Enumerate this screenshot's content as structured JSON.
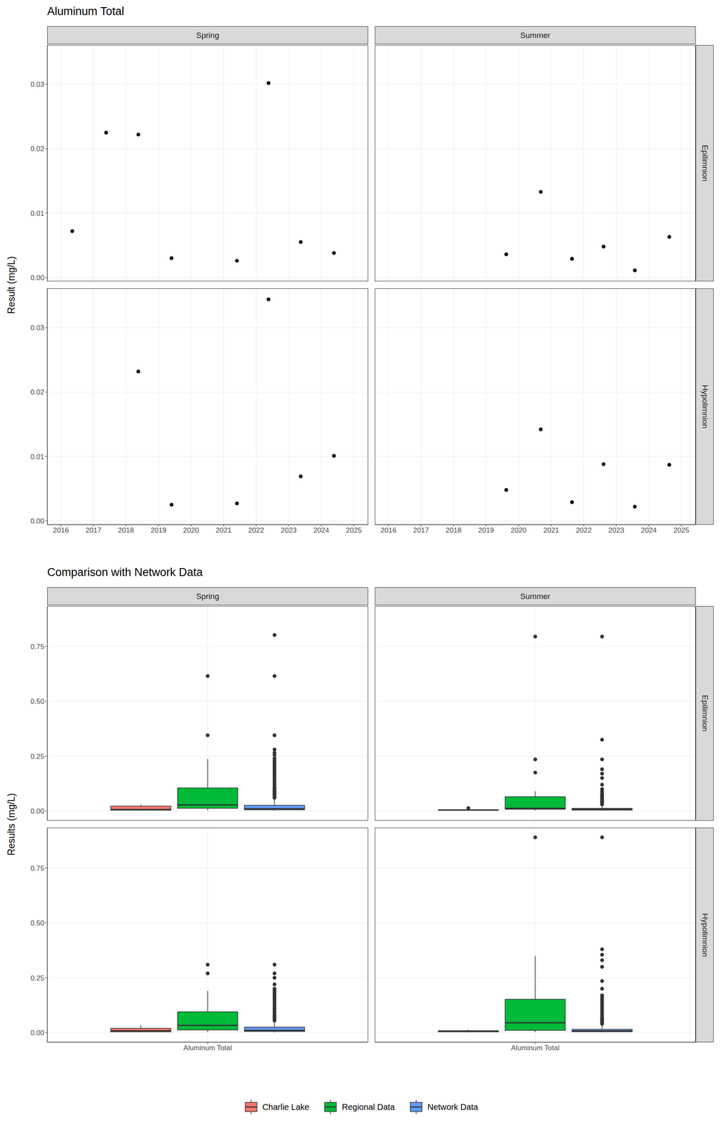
{
  "chart_data": [
    {
      "type": "scatter",
      "title": "Aluminum Total",
      "y_label": "Result (mg/L)",
      "columns": [
        "Spring",
        "Summer"
      ],
      "rows": [
        "Epilimnion",
        "Hypolimnion"
      ],
      "xlim": [
        2015.58,
        2025.44
      ],
      "xticks": [
        2016,
        2017,
        2018,
        2019,
        2020,
        2021,
        2022,
        2023,
        2024,
        2025
      ],
      "ylim": [
        -0.0006,
        0.0361
      ],
      "yticks": [
        {
          "value": 0,
          "label": "0.00"
        },
        {
          "value": 0.01,
          "label": "0.01"
        },
        {
          "value": 0.02,
          "label": "0.02"
        },
        {
          "value": 0.03,
          "label": "0.03"
        }
      ],
      "grid": true,
      "color": "#000000",
      "marker": "circle",
      "panels": [
        {
          "column": "Spring",
          "row": "Epilimnion",
          "x": [
            2016.35,
            2017.39,
            2018.38,
            2019.4,
            2021.41,
            2022.38,
            2023.37,
            2024.39
          ],
          "values": [
            0.0072,
            0.0225,
            0.0222,
            0.003,
            0.0026,
            0.0302,
            0.0055,
            0.0038
          ]
        },
        {
          "column": "Summer",
          "row": "Epilimnion",
          "x": [
            2019.62,
            2020.68,
            2021.64,
            2022.61,
            2023.57,
            2024.63
          ],
          "values": [
            0.0036,
            0.0133,
            0.0029,
            0.0048,
            0.0011,
            0.0063
          ]
        },
        {
          "column": "Spring",
          "row": "Hypolimnion",
          "x": [
            2018.38,
            2019.4,
            2021.41,
            2022.38,
            2023.37,
            2024.39
          ],
          "values": [
            0.0232,
            0.0025,
            0.0027,
            0.0344,
            0.0069,
            0.0101
          ]
        },
        {
          "column": "Summer",
          "row": "Hypolimnion",
          "x": [
            2019.62,
            2020.68,
            2021.64,
            2022.61,
            2023.57,
            2024.63
          ],
          "values": [
            0.0048,
            0.0142,
            0.0029,
            0.0088,
            0.0022,
            0.0087
          ]
        }
      ]
    },
    {
      "type": "boxplot",
      "title": "Comparison with Network Data",
      "y_label": "Results (mg/L)",
      "columns": [
        "Spring",
        "Summer"
      ],
      "rows": [
        "Epilimnion",
        "Hypolimnion"
      ],
      "categories": [
        "Aluminum Total"
      ],
      "ylim": [
        -0.044,
        0.934
      ],
      "yticks": [
        {
          "value": 0,
          "label": "0.00"
        },
        {
          "value": 0.25,
          "label": "0.25"
        },
        {
          "value": 0.5,
          "label": "0.50"
        },
        {
          "value": 0.75,
          "label": "0.75"
        }
      ],
      "grid": true,
      "legend": "bottom",
      "series": [
        {
          "name": "Charlie Lake",
          "color": "#F8766D"
        },
        {
          "name": "Regional Data",
          "color": "#00BA38"
        },
        {
          "name": "Network Data",
          "color": "#619CFF"
        }
      ],
      "panels": [
        {
          "column": "Spring",
          "row": "Epilimnion",
          "boxes": [
            {
              "name": "Charlie Lake",
              "whisker_low": 0.0026,
              "q1": 0.0036,
              "median": 0.0064,
              "q3": 0.0223,
              "whisker_high": 0.0302,
              "outliers": []
            },
            {
              "name": "Regional Data",
              "whisker_low": 0.002,
              "q1": 0.012,
              "median": 0.028,
              "q3": 0.105,
              "whisker_high": 0.237,
              "outliers": [
                0.345,
                0.615
              ]
            },
            {
              "name": "Network Data",
              "whisker_low": 0.001,
              "q1": 0.005,
              "median": 0.01,
              "q3": 0.026,
              "whisker_high": 0.055,
              "outliers": [
                0.06,
                0.065,
                0.07,
                0.075,
                0.08,
                0.085,
                0.09,
                0.095,
                0.1,
                0.105,
                0.11,
                0.12,
                0.13,
                0.14,
                0.15,
                0.16,
                0.17,
                0.18,
                0.19,
                0.2,
                0.21,
                0.22,
                0.23,
                0.24,
                0.255,
                0.265,
                0.28,
                0.345,
                0.615,
                0.802
              ]
            }
          ]
        },
        {
          "column": "Summer",
          "row": "Epilimnion",
          "boxes": [
            {
              "name": "Charlie Lake",
              "whisker_low": 0.0011,
              "q1": 0.0031,
              "median": 0.0042,
              "q3": 0.0059,
              "whisker_high": 0.0063,
              "outliers": [
                0.0133
              ]
            },
            {
              "name": "Regional Data",
              "whisker_low": 0.002,
              "q1": 0.008,
              "median": 0.012,
              "q3": 0.065,
              "whisker_high": 0.09,
              "outliers": [
                0.175,
                0.235,
                0.795
              ]
            },
            {
              "name": "Network Data",
              "whisker_low": 0.001,
              "q1": 0.004,
              "median": 0.008,
              "q3": 0.012,
              "whisker_high": 0.024,
              "outliers": [
                0.03,
                0.035,
                0.04,
                0.045,
                0.05,
                0.055,
                0.06,
                0.065,
                0.07,
                0.075,
                0.08,
                0.09,
                0.1,
                0.12,
                0.15,
                0.17,
                0.19,
                0.235,
                0.325,
                0.795
              ]
            }
          ]
        },
        {
          "column": "Spring",
          "row": "Hypolimnion",
          "boxes": [
            {
              "name": "Charlie Lake",
              "whisker_low": 0.0025,
              "q1": 0.0037,
              "median": 0.0085,
              "q3": 0.0199,
              "whisker_high": 0.0344,
              "outliers": []
            },
            {
              "name": "Regional Data",
              "whisker_low": 0.002,
              "q1": 0.012,
              "median": 0.033,
              "q3": 0.095,
              "whisker_high": 0.19,
              "outliers": [
                0.27,
                0.31
              ]
            },
            {
              "name": "Network Data",
              "whisker_low": 0.001,
              "q1": 0.005,
              "median": 0.01,
              "q3": 0.025,
              "whisker_high": 0.05,
              "outliers": [
                0.055,
                0.06,
                0.065,
                0.07,
                0.075,
                0.08,
                0.09,
                0.1,
                0.11,
                0.12,
                0.13,
                0.14,
                0.15,
                0.16,
                0.17,
                0.18,
                0.19,
                0.2,
                0.22,
                0.25,
                0.27,
                0.31
              ]
            }
          ]
        },
        {
          "column": "Summer",
          "row": "Hypolimnion",
          "boxes": [
            {
              "name": "Charlie Lake",
              "whisker_low": 0.0022,
              "q1": 0.0034,
              "median": 0.00675,
              "q3": 0.00878,
              "whisker_high": 0.0142,
              "outliers": []
            },
            {
              "name": "Regional Data",
              "whisker_low": 0.002,
              "q1": 0.01,
              "median": 0.045,
              "q3": 0.152,
              "whisker_high": 0.35,
              "outliers": [
                0.89
              ]
            },
            {
              "name": "Network Data",
              "whisker_low": 0.001,
              "q1": 0.004,
              "median": 0.008,
              "q3": 0.015,
              "whisker_high": 0.035,
              "outliers": [
                0.04,
                0.045,
                0.05,
                0.055,
                0.06,
                0.065,
                0.07,
                0.08,
                0.09,
                0.1,
                0.11,
                0.12,
                0.13,
                0.14,
                0.15,
                0.16,
                0.17,
                0.2,
                0.235,
                0.3,
                0.33,
                0.355,
                0.38,
                0.89
              ]
            }
          ]
        }
      ]
    }
  ]
}
